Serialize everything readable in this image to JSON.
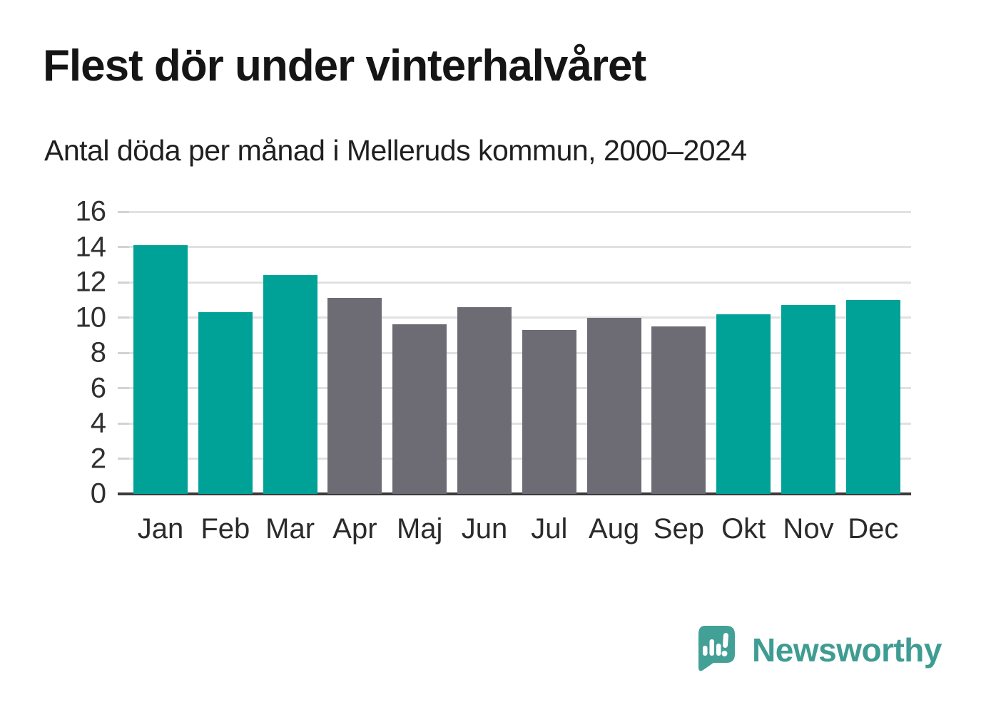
{
  "page": {
    "background_color": "#ffffff"
  },
  "header": {
    "title": "Flest dör under vinterhalvåret",
    "subtitle": "Antal döda per månad i Melleruds kommun, 2000–2024"
  },
  "chart_data": {
    "type": "bar",
    "title": "Flest dör under vinterhalvåret",
    "subtitle": "Antal döda per månad i Melleruds kommun, 2000–2024",
    "categories": [
      "Jan",
      "Feb",
      "Mar",
      "Apr",
      "Maj",
      "Jun",
      "Jul",
      "Aug",
      "Sep",
      "Okt",
      "Nov",
      "Dec"
    ],
    "values": [
      14.1,
      10.3,
      12.4,
      11.1,
      9.6,
      10.6,
      9.3,
      10.0,
      9.5,
      10.2,
      10.7,
      11.0
    ],
    "bar_colors": [
      "#00a298",
      "#00a298",
      "#00a298",
      "#6d6c75",
      "#6d6c75",
      "#6d6c75",
      "#6d6c75",
      "#6d6c75",
      "#6d6c75",
      "#00a298",
      "#00a298",
      "#00a298"
    ],
    "highlight_color": "#00a298",
    "muted_color": "#6d6c75",
    "highlighted_categories": [
      "Jan",
      "Feb",
      "Mar",
      "Okt",
      "Nov",
      "Dec"
    ],
    "xlabel": "",
    "ylabel": "",
    "ylim": [
      0,
      16
    ],
    "yticks": [
      0,
      2,
      4,
      6,
      8,
      10,
      12,
      14,
      16
    ],
    "grid": true,
    "gridline_color": "#e1e1e1",
    "axis_color": "#3b3b3b",
    "legend": "none"
  },
  "footer": {
    "brand_name": "Newsworthy",
    "brand_color": "#3f9c92",
    "logo_icon": "newsworthy-speech-bubble-bar-chart-icon"
  }
}
